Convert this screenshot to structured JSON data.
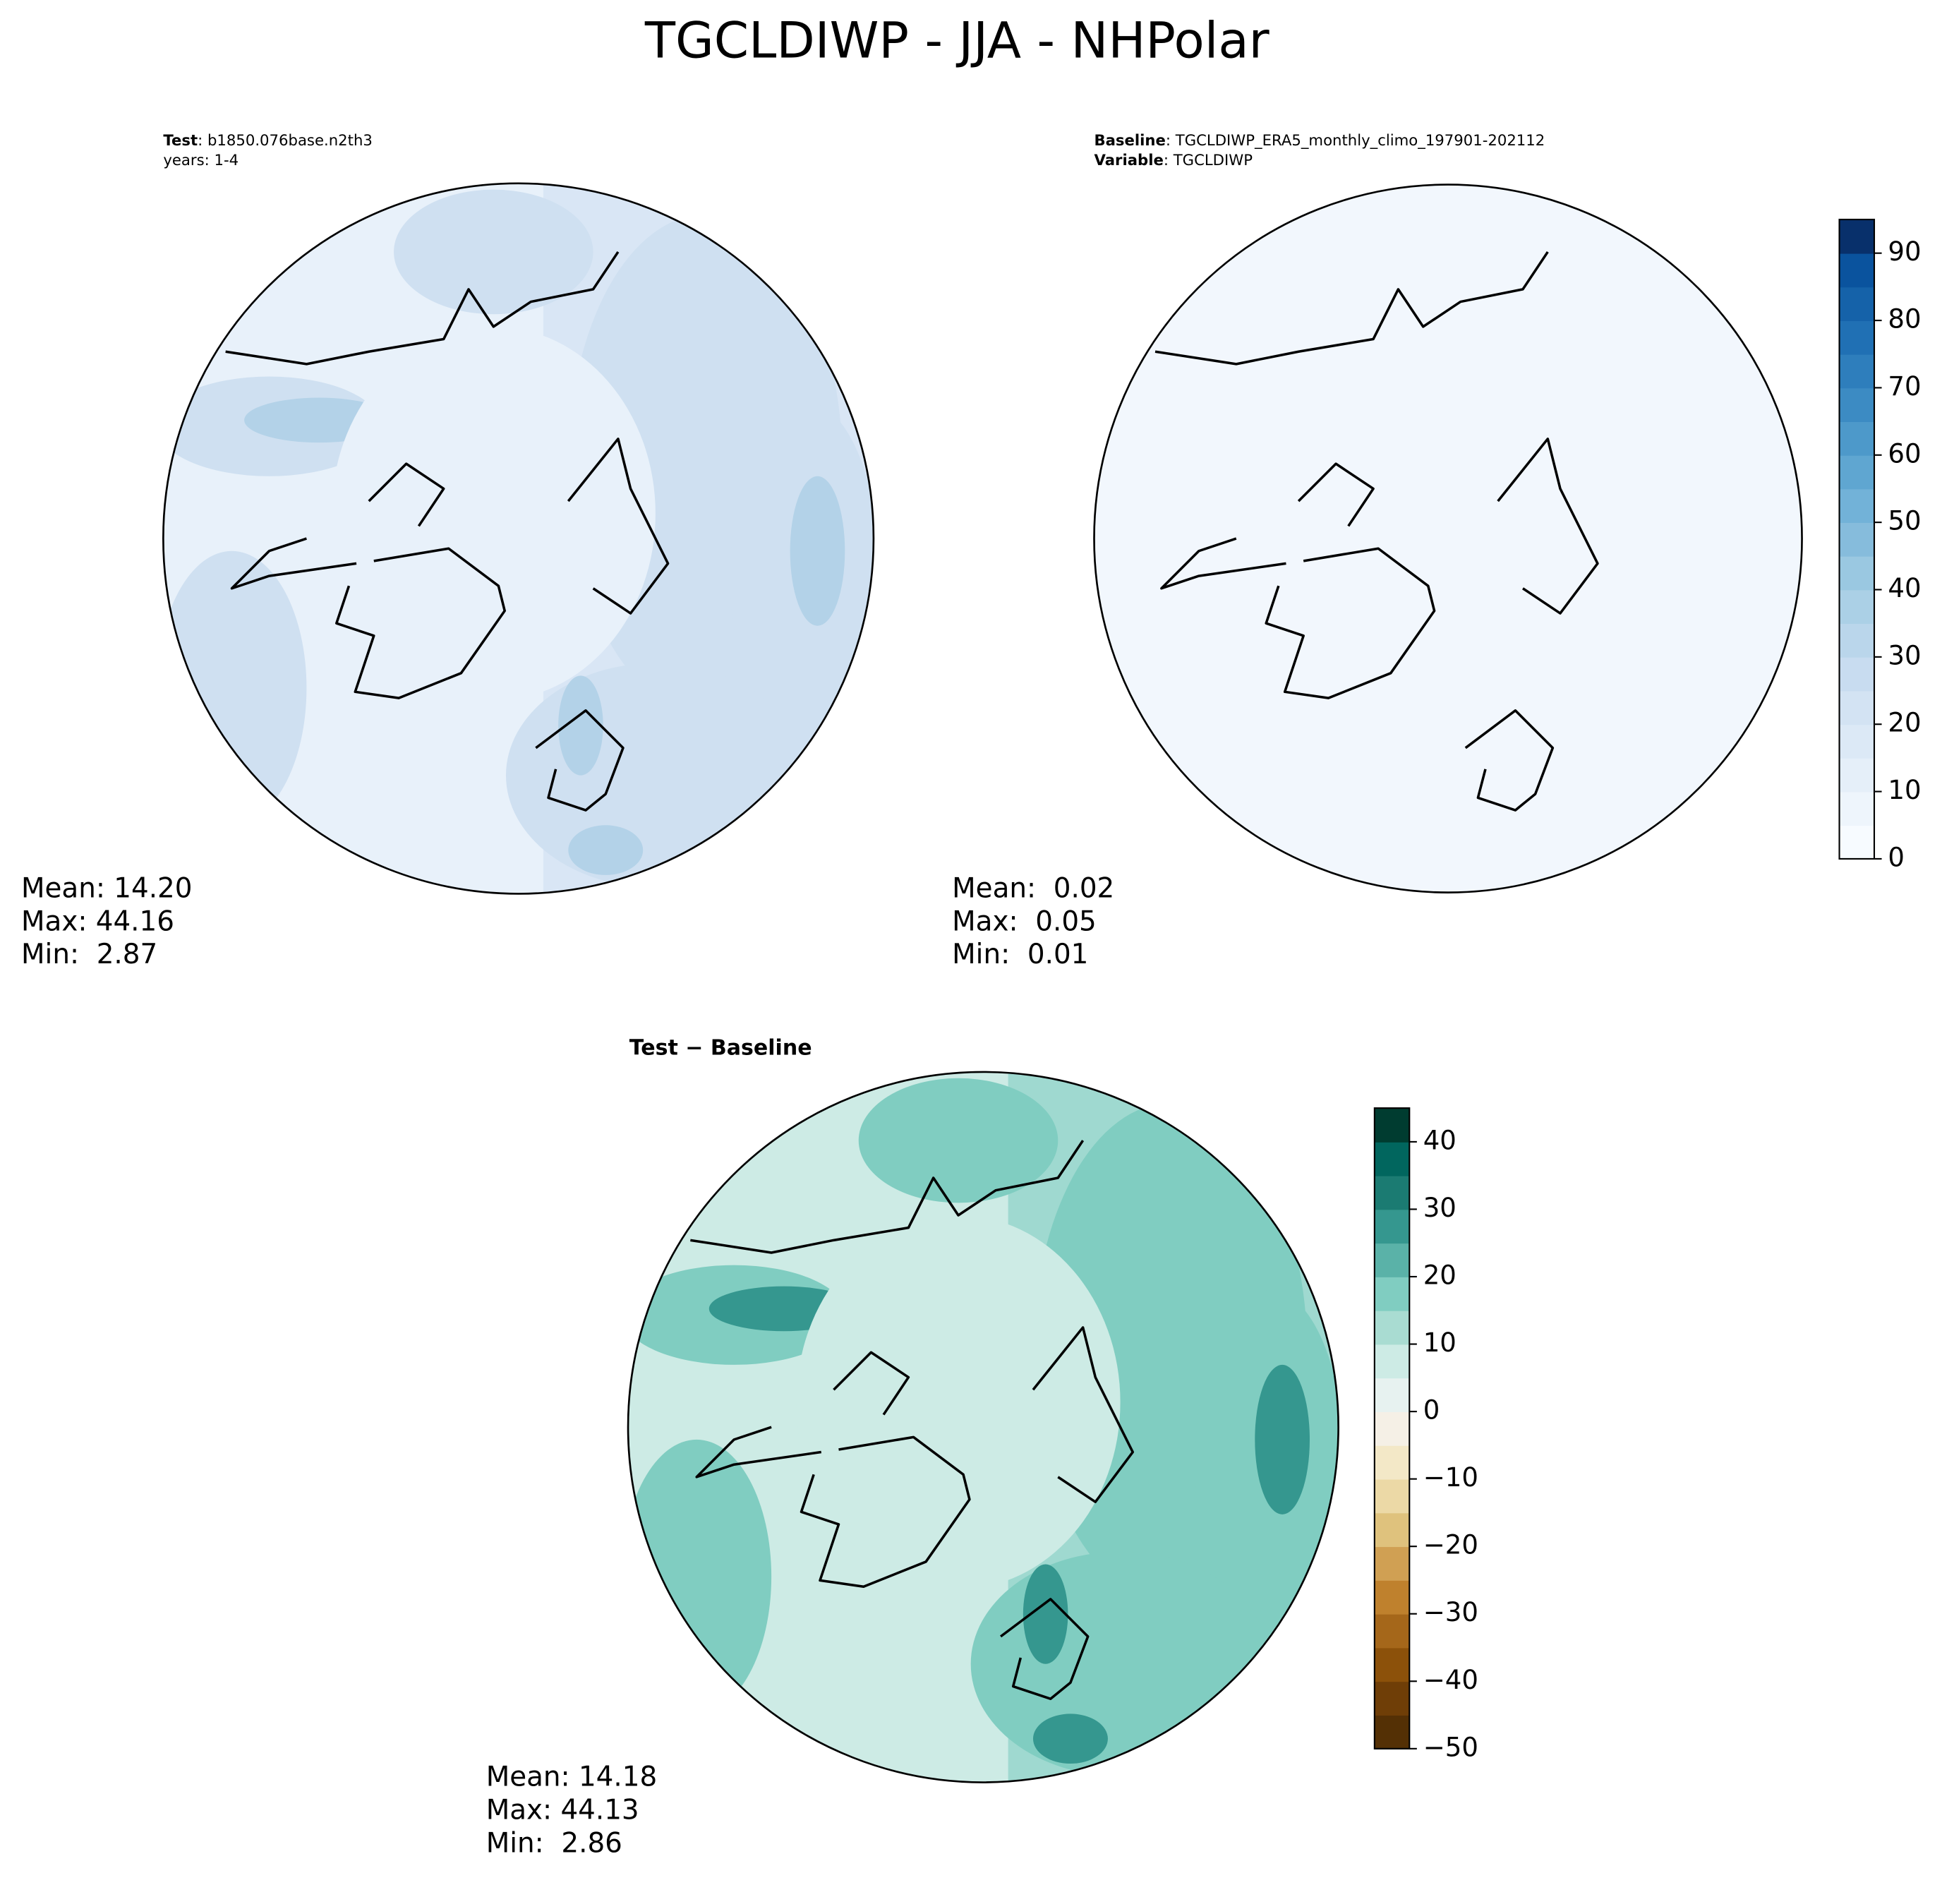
{
  "title": "TGCLDIWP - JJA - NHPolar",
  "panels": [
    {
      "header": [
        {
          "key": "Test",
          "text": ": b1850.076base.n2th3"
        },
        {
          "text": "years: 1-4"
        }
      ],
      "stats": [
        "Mean: 14.20",
        "Max: 44.16",
        "Min:  2.87"
      ]
    },
    {
      "header": [
        {
          "key": "Baseline",
          "text": ": TGCLDIWP_ERA5_monthly_climo_197901-202112"
        },
        {
          "key": "Variable",
          "text": ": TGCLDIWP"
        }
      ],
      "stats": [
        "Mean:  0.02",
        "Max:  0.05",
        "Min:  0.01"
      ]
    },
    {
      "header": [
        {
          "text": "Test − Baseline"
        }
      ],
      "stats": [
        "Mean: 14.18",
        "Max: 44.13",
        "Min:  2.86"
      ]
    }
  ],
  "colorbars": [
    {
      "ylim": [
        0,
        95
      ],
      "yticks": [
        0,
        10,
        20,
        30,
        40,
        50,
        60,
        70,
        80,
        90
      ],
      "colors": [
        "#f7fbff",
        "#eef5fc",
        "#e5eff9",
        "#dce9f6",
        "#d3e3f3",
        "#c8dcf0",
        "#bad6eb",
        "#abd0e6",
        "#9ac8e1",
        "#86bcdc",
        "#72b2d8",
        "#5fa6d1",
        "#4d99ca",
        "#3c8bc3",
        "#2e7ebc",
        "#2070b4",
        "#1562a9",
        "#0a539e",
        "#08306b"
      ]
    },
    {
      "ylim": [
        -50,
        45
      ],
      "yticks": [
        {
          "value": -50,
          "label": "−50"
        },
        {
          "value": -40,
          "label": "−40"
        },
        {
          "value": -30,
          "label": "−30"
        },
        {
          "value": -20,
          "label": "−20"
        },
        {
          "value": -10,
          "label": "−10"
        },
        0,
        10,
        20,
        30,
        40
      ],
      "colors": [
        "#543005",
        "#6f3e07",
        "#8c510a",
        "#a5671a",
        "#bf812d",
        "#d0a053",
        "#dfc27d",
        "#ecd9a6",
        "#f3e8c7",
        "#f5f0e6",
        "#e7f2f0",
        "#cdebe5",
        "#a9dcd2",
        "#80cdc1",
        "#5ab2a8",
        "#35978f",
        "#1b7b72",
        "#01665e",
        "#003c30"
      ]
    }
  ]
}
